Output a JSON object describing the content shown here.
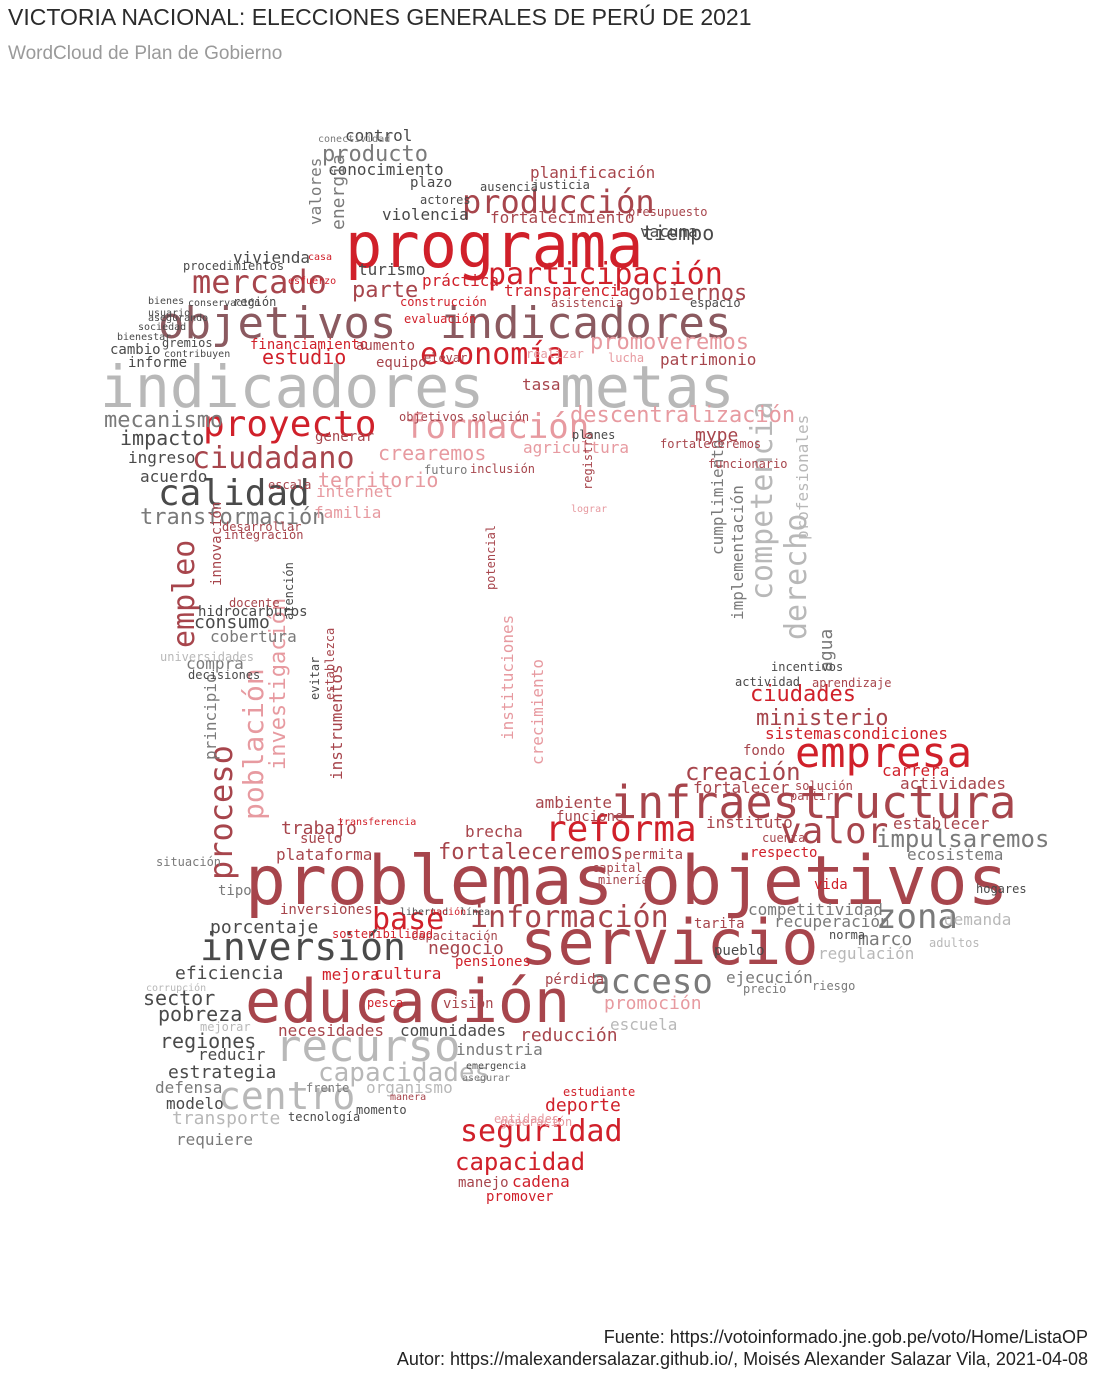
{
  "title": "VICTORIA NACIONAL: ELECCIONES GENERALES DE PERÚ DE 2021",
  "subtitle": "WordCloud de Plan de Gobierno",
  "caption": {
    "source": "Fuente: https://votoinformado.jne.gob.pe/voto/Home/ListaOP",
    "author": "Autor: https://malexandersalazar.github.io/, Moisés Alexander Salazar Vila, 2021-04-08"
  },
  "colors": {
    "red": "#d0202a",
    "maroon": "#a7454c",
    "mauve": "#8b5a60",
    "gray": "#7a7a7a",
    "lightgray": "#b8b8b8",
    "pink": "#e79aa0",
    "dark": "#4a4a4a"
  },
  "words": [
    {
      "text": "programa",
      "color": "red"
    },
    {
      "text": "objetivos",
      "color": "mauve"
    },
    {
      "text": "indicadores",
      "color": "mauve"
    },
    {
      "text": "indicadores",
      "color": "lightgray"
    },
    {
      "text": "metas",
      "color": "lightgray"
    },
    {
      "text": "problemas",
      "color": "maroon"
    },
    {
      "text": "objetivos",
      "color": "maroon"
    },
    {
      "text": "servicio",
      "color": "maroon"
    },
    {
      "text": "educación",
      "color": "maroon"
    },
    {
      "text": "infraestructura",
      "color": "maroon"
    },
    {
      "text": "empresa",
      "color": "red"
    },
    {
      "text": "inversión",
      "color": "dark"
    },
    {
      "text": "recurso",
      "color": "lightgray"
    },
    {
      "text": "reforma",
      "color": "red"
    },
    {
      "text": "calidad",
      "color": "dark"
    },
    {
      "text": "proyecto",
      "color": "red"
    },
    {
      "text": "formación",
      "color": "pink"
    },
    {
      "text": "ciudadano",
      "color": "maroon"
    },
    {
      "text": "economía",
      "color": "red"
    },
    {
      "text": "participación",
      "color": "red"
    },
    {
      "text": "mercado",
      "color": "maroon"
    },
    {
      "text": "producción",
      "color": "maroon"
    },
    {
      "text": "centro",
      "color": "lightgray"
    },
    {
      "text": "información",
      "color": "maroon"
    },
    {
      "text": "acceso",
      "color": "gray"
    },
    {
      "text": "seguridad",
      "color": "red"
    },
    {
      "text": "valor",
      "color": "maroon"
    },
    {
      "text": "zona",
      "color": "gray"
    },
    {
      "text": "base",
      "color": "red"
    },
    {
      "text": "competencia",
      "color": "lightgray"
    },
    {
      "text": "derecho",
      "color": "lightgray"
    },
    {
      "text": "proceso",
      "color": "maroon"
    },
    {
      "text": "población",
      "color": "pink"
    },
    {
      "text": "empleo",
      "color": "maroon"
    },
    {
      "text": "investigación",
      "color": "pink"
    },
    {
      "text": "capacidades",
      "color": "lightgray"
    },
    {
      "text": "capacidad",
      "color": "red"
    },
    {
      "text": "impulsaremos",
      "color": "gray"
    },
    {
      "text": "fortaleceremos",
      "color": "maroon"
    },
    {
      "text": "creación",
      "color": "maroon"
    },
    {
      "text": "ciudades",
      "color": "red"
    },
    {
      "text": "ministerio",
      "color": "maroon"
    },
    {
      "text": "descentralización",
      "color": "pink"
    },
    {
      "text": "promoveremos",
      "color": "pink"
    },
    {
      "text": "gobiernos",
      "color": "maroon"
    },
    {
      "text": "transformación",
      "color": "gray"
    },
    {
      "text": "mecanismo",
      "color": "gray"
    },
    {
      "text": "impacto",
      "color": "dark"
    },
    {
      "text": "territorio",
      "color": "pink"
    },
    {
      "text": "crearemos",
      "color": "pink"
    },
    {
      "text": "estudio",
      "color": "red"
    },
    {
      "text": "parte",
      "color": "maroon"
    },
    {
      "text": "tiempo",
      "color": "dark"
    },
    {
      "text": "producto",
      "color": "gray"
    },
    {
      "text": "control",
      "color": "dark"
    },
    {
      "text": "conocimiento",
      "color": "dark"
    },
    {
      "text": "planificación",
      "color": "maroon"
    },
    {
      "text": "fortalecimiento",
      "color": "maroon"
    },
    {
      "text": "violencia",
      "color": "dark"
    },
    {
      "text": "energía",
      "color": "gray"
    },
    {
      "text": "valores",
      "color": "gray"
    },
    {
      "text": "vivienda",
      "color": "dark"
    },
    {
      "text": "turismo",
      "color": "dark"
    },
    {
      "text": "práctica",
      "color": "red"
    },
    {
      "text": "transparencia",
      "color": "red"
    },
    {
      "text": "patrimonio",
      "color": "maroon"
    },
    {
      "text": "tasa",
      "color": "maroon"
    },
    {
      "text": "mype",
      "color": "maroon"
    },
    {
      "text": "agricultura",
      "color": "pink"
    },
    {
      "text": "internet",
      "color": "pink"
    },
    {
      "text": "familia",
      "color": "pink"
    },
    {
      "text": "acuerdo",
      "color": "dark"
    },
    {
      "text": "ingreso",
      "color": "dark"
    },
    {
      "text": "consumo",
      "color": "dark"
    },
    {
      "text": "cobertura",
      "color": "gray"
    },
    {
      "text": "compra",
      "color": "gray"
    },
    {
      "text": "principio",
      "color": "gray"
    },
    {
      "text": "trabajo",
      "color": "maroon"
    },
    {
      "text": "plataforma",
      "color": "maroon"
    },
    {
      "text": "brecha",
      "color": "maroon"
    },
    {
      "text": "ambiente",
      "color": "maroon"
    },
    {
      "text": "crecimiento",
      "color": "pink"
    },
    {
      "text": "instituciones",
      "color": "pink"
    },
    {
      "text": "cumplimiento",
      "color": "gray"
    },
    {
      "text": "implementación",
      "color": "gray"
    },
    {
      "text": "profesionales",
      "color": "lightgray"
    },
    {
      "text": "agua",
      "color": "gray"
    },
    {
      "text": "sistemascondiciones",
      "color": "red"
    },
    {
      "text": "carrera",
      "color": "red"
    },
    {
      "text": "actividades",
      "color": "maroon"
    },
    {
      "text": "fortalecer",
      "color": "maroon"
    },
    {
      "text": "instituto",
      "color": "maroon"
    },
    {
      "text": "establecer",
      "color": "maroon"
    },
    {
      "text": "ecosistema",
      "color": "gray"
    },
    {
      "text": "competitividad",
      "color": "gray"
    },
    {
      "text": "recuperación",
      "color": "gray"
    },
    {
      "text": "marco",
      "color": "gray"
    },
    {
      "text": "regulación",
      "color": "lightgray"
    },
    {
      "text": "demanda",
      "color": "lightgray"
    },
    {
      "text": "porcentaje",
      "color": "dark"
    },
    {
      "text": "eficiencia",
      "color": "dark"
    },
    {
      "text": "sector",
      "color": "dark"
    },
    {
      "text": "pobreza",
      "color": "dark"
    },
    {
      "text": "regiones",
      "color": "dark"
    },
    {
      "text": "estrategia",
      "color": "dark"
    },
    {
      "text": "defensa",
      "color": "gray"
    },
    {
      "text": "modelo",
      "color": "dark"
    },
    {
      "text": "transporte",
      "color": "lightgray"
    },
    {
      "text": "requiere",
      "color": "gray"
    },
    {
      "text": "necesidades",
      "color": "maroon"
    },
    {
      "text": "comunidades",
      "color": "dark"
    },
    {
      "text": "industria",
      "color": "gray"
    },
    {
      "text": "reducción",
      "color": "maroon"
    },
    {
      "text": "promoción",
      "color": "pink"
    },
    {
      "text": "escuela",
      "color": "lightgray"
    },
    {
      "text": "ejecución",
      "color": "gray"
    },
    {
      "text": "deporte",
      "color": "red"
    },
    {
      "text": "cadena",
      "color": "red"
    },
    {
      "text": "manejo",
      "color": "maroon"
    },
    {
      "text": "promover",
      "color": "red"
    },
    {
      "text": "negocio",
      "color": "maroon"
    },
    {
      "text": "cultura",
      "color": "red"
    },
    {
      "text": "mejora",
      "color": "red"
    },
    {
      "text": "inversiones",
      "color": "maroon"
    },
    {
      "text": "organismo",
      "color": "lightgray"
    },
    {
      "text": "reducir",
      "color": "dark"
    },
    {
      "text": "suelo",
      "color": "maroon"
    },
    {
      "text": "tipo",
      "color": "gray"
    },
    {
      "text": "situación",
      "color": "gray"
    },
    {
      "text": "generar",
      "color": "maroon"
    },
    {
      "text": "cambio",
      "color": "dark"
    },
    {
      "text": "informe",
      "color": "dark"
    },
    {
      "text": "región",
      "color": "dark"
    },
    {
      "text": "gremios",
      "color": "dark"
    },
    {
      "text": "financiamiento",
      "color": "red"
    },
    {
      "text": "aumento",
      "color": "maroon"
    },
    {
      "text": "equipo",
      "color": "maroon"
    },
    {
      "text": "vacuna",
      "color": "dark"
    },
    {
      "text": "espacio",
      "color": "dark"
    },
    {
      "text": "plazo",
      "color": "dark"
    },
    {
      "text": "actores",
      "color": "dark"
    },
    {
      "text": "procedimientos",
      "color": "dark"
    },
    {
      "text": "innovación",
      "color": "maroon"
    },
    {
      "text": "hidrocarburos",
      "color": "dark"
    },
    {
      "text": "universidades",
      "color": "lightgray"
    },
    {
      "text": "desarrollar",
      "color": "maroon"
    },
    {
      "text": "integración",
      "color": "maroon"
    },
    {
      "text": "docente",
      "color": "maroon"
    },
    {
      "text": "fondo",
      "color": "maroon"
    },
    {
      "text": "solución",
      "color": "maroon"
    },
    {
      "text": "cuenta",
      "color": "maroon"
    },
    {
      "text": "partir",
      "color": "maroon"
    },
    {
      "text": "respecto",
      "color": "red"
    },
    {
      "text": "vida",
      "color": "red"
    },
    {
      "text": "tarifa",
      "color": "maroon"
    },
    {
      "text": "pueblo",
      "color": "dark"
    },
    {
      "text": "norma",
      "color": "dark"
    },
    {
      "text": "riesgo",
      "color": "gray"
    },
    {
      "text": "precio",
      "color": "gray"
    },
    {
      "text": "visión",
      "color": "maroon"
    },
    {
      "text": "pesca",
      "color": "red"
    },
    {
      "text": "pensiones",
      "color": "red"
    },
    {
      "text": "pérdida",
      "color": "maroon"
    },
    {
      "text": "capacitación",
      "color": "maroon"
    },
    {
      "text": "funcione",
      "color": "maroon"
    },
    {
      "text": "permita",
      "color": "maroon"
    },
    {
      "text": "capital",
      "color": "maroon"
    },
    {
      "text": "minería",
      "color": "maroon"
    },
    {
      "text": "estudiante",
      "color": "red"
    },
    {
      "text": "objetivos solución",
      "color": "maroon"
    },
    {
      "text": "presupuesto",
      "color": "maroon"
    },
    {
      "text": "asistencia",
      "color": "maroon"
    },
    {
      "text": "construcción",
      "color": "red"
    },
    {
      "text": "evaluación",
      "color": "red"
    },
    {
      "text": "hogares",
      "color": "dark"
    },
    {
      "text": "adultos",
      "color": "lightgray"
    },
    {
      "text": "ausencia",
      "color": "dark"
    },
    {
      "text": "justicia",
      "color": "dark"
    },
    {
      "text": "conectividad",
      "color": "gray"
    },
    {
      "text": "incentivos",
      "color": "dark"
    },
    {
      "text": "aprendizaje",
      "color": "maroon"
    },
    {
      "text": "actividad",
      "color": "dark"
    },
    {
      "text": "funcionario",
      "color": "maroon"
    },
    {
      "text": "fortaleceremos",
      "color": "maroon"
    },
    {
      "text": "planes",
      "color": "dark"
    },
    {
      "text": "futuro",
      "color": "gray"
    },
    {
      "text": "inclusión",
      "color": "maroon"
    },
    {
      "text": "escala",
      "color": "maroon"
    },
    {
      "text": "potencial",
      "color": "maroon"
    },
    {
      "text": "registro",
      "color": "maroon"
    },
    {
      "text": "lograr",
      "color": "pink"
    },
    {
      "text": "lucha",
      "color": "pink"
    },
    {
      "text": "realizar",
      "color": "pink"
    },
    {
      "text": "elevar",
      "color": "maroon"
    },
    {
      "text": "esfuerzo",
      "color": "red"
    },
    {
      "text": "casa",
      "color": "red"
    },
    {
      "text": "bienestar",
      "color": "dark"
    },
    {
      "text": "sociedad",
      "color": "dark"
    },
    {
      "text": "conservación",
      "color": "dark"
    },
    {
      "text": "asegurando",
      "color": "dark"
    },
    {
      "text": "usuario",
      "color": "dark"
    },
    {
      "text": "bienes",
      "color": "dark"
    },
    {
      "text": "contribuyen",
      "color": "dark"
    },
    {
      "text": "momento",
      "color": "dark"
    },
    {
      "text": "tecnología",
      "color": "dark"
    },
    {
      "text": "frente",
      "color": "gray"
    },
    {
      "text": "asegurar",
      "color": "gray"
    },
    {
      "text": "emergencia",
      "color": "dark"
    },
    {
      "text": "mejorar",
      "color": "lightgray"
    },
    {
      "text": "corrupción",
      "color": "lightgray"
    },
    {
      "text": "decisiones",
      "color": "dark"
    },
    {
      "text": "atención",
      "color": "dark"
    },
    {
      "text": "evitar",
      "color": "dark"
    },
    {
      "text": "instrumentos",
      "color": "maroon"
    },
    {
      "text": "establezca",
      "color": "maroon"
    },
    {
      "text": "generación",
      "color": "pink"
    },
    {
      "text": "entidades",
      "color": "pink"
    },
    {
      "text": "manera",
      "color": "maroon"
    },
    {
      "text": "sostenibilidad",
      "color": "red"
    },
    {
      "text": "transferencia",
      "color": "red"
    },
    {
      "text": "libertad",
      "color": "dark"
    },
    {
      "text": "nación",
      "color": "red"
    },
    {
      "text": "línea",
      "color": "dark"
    }
  ]
}
